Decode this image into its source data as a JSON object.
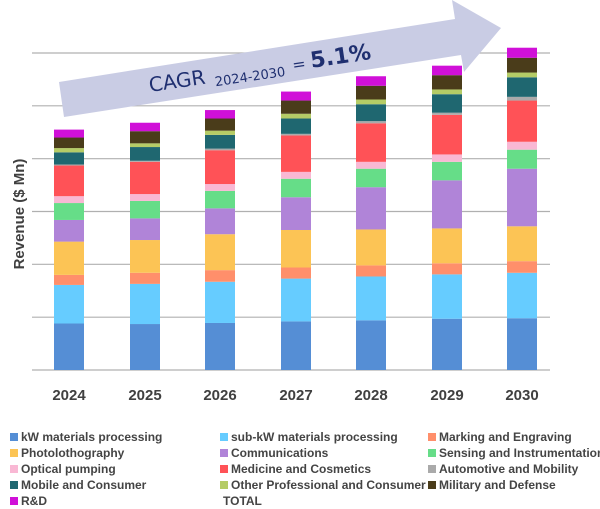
{
  "chart_data": {
    "type": "bar",
    "stacked": true,
    "ylabel": "Revenue ($ Mn)",
    "ylim": [
      0,
      6
    ],
    "y_tick_labels_shown": false,
    "grid": true,
    "legend_placement": "bottom",
    "annotation": {
      "prefix": "CAGR",
      "subscript": "2024-2030",
      "suffix": "= ",
      "value": "5.1%",
      "color": "#1f2f70",
      "arrow_color": "#c9cce4"
    },
    "categories": [
      "2024",
      "2025",
      "2026",
      "2027",
      "2028",
      "2029",
      "2030"
    ],
    "series": [
      {
        "name": "kW materials processing",
        "color": "#558ed5",
        "values": [
          0.88,
          0.87,
          0.89,
          0.92,
          0.94,
          0.97,
          0.98
        ]
      },
      {
        "name": "sub-kW materials processing",
        "color": "#66ccff",
        "values": [
          0.73,
          0.76,
          0.78,
          0.81,
          0.83,
          0.84,
          0.86
        ]
      },
      {
        "name": "Marking and Engraving",
        "color": "#ff8f6b",
        "values": [
          0.19,
          0.21,
          0.22,
          0.21,
          0.21,
          0.21,
          0.22
        ]
      },
      {
        "name": "Photolothography",
        "color": "#fcc455",
        "values": [
          0.63,
          0.62,
          0.68,
          0.71,
          0.68,
          0.66,
          0.66
        ]
      },
      {
        "name": "Communications",
        "color": "#b084d8",
        "values": [
          0.41,
          0.41,
          0.49,
          0.62,
          0.8,
          0.91,
          1.09
        ]
      },
      {
        "name": "Sensing and Instrumentation",
        "color": "#66dd88",
        "values": [
          0.32,
          0.33,
          0.33,
          0.35,
          0.35,
          0.35,
          0.36
        ]
      },
      {
        "name": "Optical pumping",
        "color": "#f9b8d4",
        "values": [
          0.13,
          0.13,
          0.13,
          0.13,
          0.13,
          0.14,
          0.15
        ]
      },
      {
        "name": "Medicine and Cosmetics",
        "color": "#ff5257",
        "values": [
          0.58,
          0.61,
          0.64,
          0.69,
          0.73,
          0.75,
          0.78
        ]
      },
      {
        "name": "Automotive and Mobility",
        "color": "#aaaaaa",
        "values": [
          0.02,
          0.02,
          0.03,
          0.03,
          0.04,
          0.04,
          0.07
        ]
      },
      {
        "name": "Mobile and Consumer",
        "color": "#1f6770",
        "values": [
          0.23,
          0.26,
          0.26,
          0.29,
          0.32,
          0.35,
          0.37
        ]
      },
      {
        "name": "Other Professional and Consumer",
        "color": "#b5cc66",
        "values": [
          0.08,
          0.07,
          0.08,
          0.09,
          0.09,
          0.09,
          0.09
        ]
      },
      {
        "name": "Military and Defense",
        "color": "#4a3c1a",
        "values": [
          0.2,
          0.23,
          0.23,
          0.25,
          0.26,
          0.27,
          0.28
        ]
      },
      {
        "name": "R&D",
        "color": "#d010d8",
        "values": [
          0.15,
          0.16,
          0.16,
          0.17,
          0.18,
          0.18,
          0.19
        ]
      }
    ],
    "total_label": "TOTAL",
    "totals": [
      4.55,
      4.68,
      4.92,
      5.27,
      5.56,
      5.76,
      6.1
    ]
  }
}
